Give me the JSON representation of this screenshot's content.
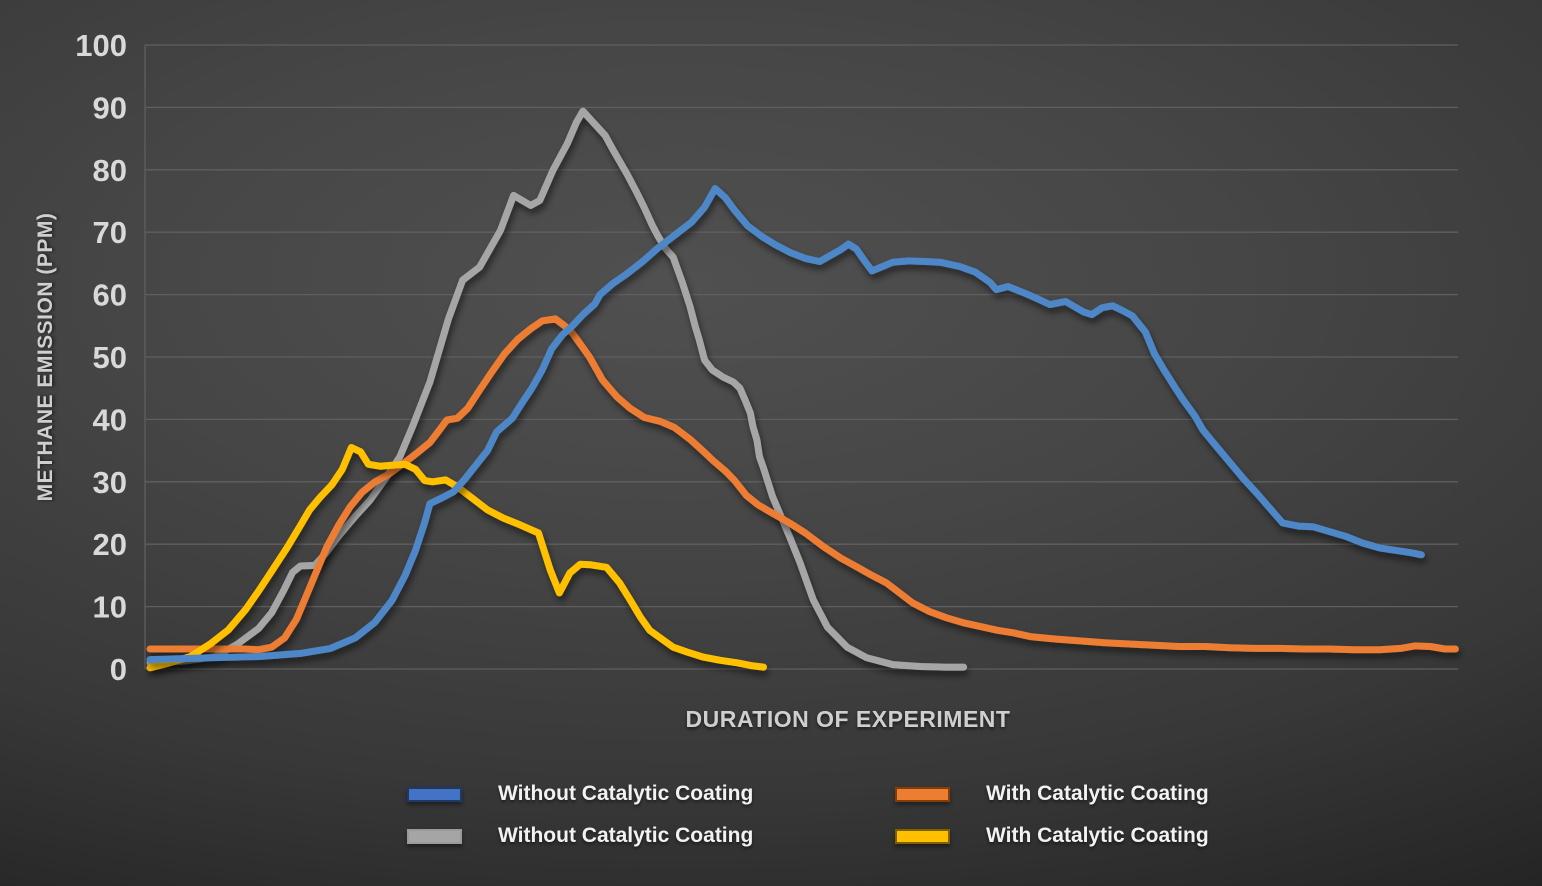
{
  "y_axis": {
    "title": "METHANE EMISSION (PPM)",
    "ticks": [
      0,
      10,
      20,
      30,
      40,
      50,
      60,
      70,
      80,
      90,
      100
    ],
    "tick_color": "#d9d9d9",
    "gridline_color": "#5f5f5f"
  },
  "x_axis": {
    "title": "DURATION OF EXPERIMENT"
  },
  "legend": [
    {
      "label": "Without Catalytic Coating",
      "swatch_fill": "#4472C4",
      "swatch_border": "#1F3864"
    },
    {
      "label": "Without Catalytic Coating",
      "swatch_fill": "#A5A5A5",
      "swatch_border": "#9A9A9A"
    },
    {
      "label": "With Catalytic Coating",
      "swatch_fill": "#ED7D31",
      "swatch_border": "#843C0C"
    },
    {
      "label": "With Catalytic Coating",
      "swatch_fill": "#FFC000",
      "swatch_border": "#7F6000"
    }
  ],
  "chart_data": {
    "type": "line",
    "title": "",
    "xlabel": "DURATION OF EXPERIMENT",
    "ylabel": "METHANE EMISSION (PPM)",
    "ylim": [
      0,
      100
    ],
    "xlim": [
      0,
      100
    ],
    "grid": true,
    "legend_position": "bottom",
    "x_units": "relative time (no tick labels shown)",
    "y_units": "ppm",
    "series": [
      {
        "name": "Without Catalytic Coating",
        "color": "#4D87C7",
        "points": [
          [
            0,
            1.5
          ],
          [
            4.6,
            1.8
          ],
          [
            8.4,
            2
          ],
          [
            11.5,
            2.5
          ],
          [
            13.8,
            3.3
          ],
          [
            15.7,
            5
          ],
          [
            17.2,
            7.5
          ],
          [
            18.5,
            11
          ],
          [
            19.5,
            15
          ],
          [
            20.3,
            19
          ],
          [
            21,
            23.5
          ],
          [
            21.4,
            26.5
          ],
          [
            22.2,
            27.3
          ],
          [
            23.2,
            28.4
          ],
          [
            24.1,
            30.5
          ],
          [
            25.8,
            35
          ],
          [
            26.5,
            38
          ],
          [
            27.7,
            40.2
          ],
          [
            28.4,
            42.5
          ],
          [
            29.2,
            45
          ],
          [
            30,
            48
          ],
          [
            30.7,
            51.3
          ],
          [
            31.5,
            53.5
          ],
          [
            32.3,
            55
          ],
          [
            33.1,
            56.8
          ],
          [
            34,
            58.5
          ],
          [
            34.4,
            60
          ],
          [
            35.4,
            61.8
          ],
          [
            36.3,
            63.1
          ],
          [
            37.6,
            65.2
          ],
          [
            38.8,
            67.4
          ],
          [
            40.1,
            69.5
          ],
          [
            41.4,
            71.6
          ],
          [
            42.4,
            74
          ],
          [
            43.2,
            77
          ],
          [
            44,
            75.5
          ],
          [
            44.7,
            73.5
          ],
          [
            45.7,
            71
          ],
          [
            46.8,
            69.3
          ],
          [
            47.8,
            68
          ],
          [
            48.9,
            66.8
          ],
          [
            50.1,
            65.8
          ],
          [
            51.2,
            65.3
          ],
          [
            52.8,
            67.2
          ],
          [
            53.4,
            68.1
          ],
          [
            54,
            67.3
          ],
          [
            54.7,
            65.2
          ],
          [
            55.2,
            63.8
          ],
          [
            56.8,
            65.2
          ],
          [
            58,
            65.4
          ],
          [
            59.3,
            65.3
          ],
          [
            60.4,
            65.2
          ],
          [
            61.9,
            64.5
          ],
          [
            63.1,
            63.6
          ],
          [
            64.2,
            62
          ],
          [
            64.7,
            60.8
          ],
          [
            65.6,
            61.3
          ],
          [
            66.8,
            60.3
          ],
          [
            67.9,
            59.3
          ],
          [
            68.8,
            58.4
          ],
          [
            70,
            58.9
          ],
          [
            71.4,
            57.2
          ],
          [
            72,
            56.8
          ],
          [
            72.8,
            57.9
          ],
          [
            73.6,
            58.2
          ],
          [
            74.3,
            57.5
          ],
          [
            75.1,
            56.6
          ],
          [
            76.1,
            54
          ],
          [
            76.8,
            50.5
          ],
          [
            77.5,
            48
          ],
          [
            78.4,
            45
          ],
          [
            79,
            43.1
          ],
          [
            79.9,
            40.5
          ],
          [
            80.5,
            38.3
          ],
          [
            81.6,
            35.5
          ],
          [
            82.6,
            33
          ],
          [
            83.6,
            30.5
          ],
          [
            84.6,
            28.2
          ],
          [
            85.6,
            25.8
          ],
          [
            86.6,
            23.4
          ],
          [
            87.8,
            22.9
          ],
          [
            88.9,
            22.8
          ],
          [
            90.2,
            22
          ],
          [
            91.5,
            21.2
          ],
          [
            92.7,
            20.2
          ],
          [
            94,
            19.4
          ],
          [
            95.6,
            18.9
          ],
          [
            96.5,
            18.6
          ],
          [
            97.2,
            18.3
          ]
        ]
      },
      {
        "name": "Without Catalytic Coating",
        "color": "#A6A6A6",
        "points": [
          [
            0,
            1
          ],
          [
            2.7,
            1.3
          ],
          [
            5,
            2
          ],
          [
            6.7,
            4
          ],
          [
            8.3,
            6.5
          ],
          [
            9.3,
            9
          ],
          [
            10.2,
            12.5
          ],
          [
            10.9,
            15.5
          ],
          [
            11.5,
            16.5
          ],
          [
            12.6,
            16.6
          ],
          [
            13.4,
            18.5
          ],
          [
            14.5,
            21.5
          ],
          [
            15.7,
            24.5
          ],
          [
            16.8,
            27
          ],
          [
            18,
            30.5
          ],
          [
            19.1,
            34
          ],
          [
            20.1,
            39
          ],
          [
            21.4,
            46
          ],
          [
            22.8,
            56
          ],
          [
            23.9,
            62.3
          ],
          [
            25.2,
            64.4
          ],
          [
            26.8,
            70.3
          ],
          [
            27.8,
            75.9
          ],
          [
            29.1,
            74.3
          ],
          [
            29.8,
            75.1
          ],
          [
            30.8,
            79.9
          ],
          [
            31.9,
            84.2
          ],
          [
            32.6,
            87.6
          ],
          [
            33.1,
            89.4
          ],
          [
            34.8,
            85.5
          ],
          [
            35.4,
            83.2
          ],
          [
            36.5,
            79.2
          ],
          [
            37.2,
            76.4
          ],
          [
            37.8,
            73.9
          ],
          [
            38.4,
            71.1
          ],
          [
            38.8,
            69.5
          ],
          [
            39.4,
            67.4
          ],
          [
            40,
            66
          ],
          [
            40.7,
            61.9
          ],
          [
            41.3,
            58
          ],
          [
            41.7,
            54.8
          ],
          [
            42,
            52.7
          ],
          [
            42.4,
            49.5
          ],
          [
            43,
            47.9
          ],
          [
            43.8,
            46.8
          ],
          [
            44.6,
            46
          ],
          [
            45.1,
            45
          ],
          [
            45.5,
            43.1
          ],
          [
            45.9,
            41
          ],
          [
            46.1,
            38.8
          ],
          [
            46.4,
            36.7
          ],
          [
            46.6,
            34
          ],
          [
            46.9,
            32.2
          ],
          [
            47.6,
            27.6
          ],
          [
            48.9,
            21.2
          ],
          [
            49.7,
            17
          ],
          [
            50.7,
            11.1
          ],
          [
            51.8,
            6.7
          ],
          [
            53.3,
            3.5
          ],
          [
            54.8,
            1.8
          ],
          [
            56.8,
            0.7
          ],
          [
            58.9,
            0.4
          ],
          [
            60.8,
            0.3
          ],
          [
            62.2,
            0.3
          ]
        ]
      },
      {
        "name": "With Catalytic Coating",
        "color": "#ED7D31",
        "points": [
          [
            0,
            3.2
          ],
          [
            3.8,
            3.2
          ],
          [
            7.3,
            3.2
          ],
          [
            8.3,
            3.1
          ],
          [
            9.3,
            3.5
          ],
          [
            10.3,
            5
          ],
          [
            11.2,
            8
          ],
          [
            11.9,
            11.5
          ],
          [
            12.7,
            15.5
          ],
          [
            13.5,
            19.5
          ],
          [
            14.4,
            23
          ],
          [
            15.3,
            26
          ],
          [
            16.2,
            28.3
          ],
          [
            17.2,
            30
          ],
          [
            18.3,
            31.3
          ],
          [
            19.3,
            32.8
          ],
          [
            20.4,
            34.6
          ],
          [
            21.4,
            36.3
          ],
          [
            22.2,
            38.5
          ],
          [
            22.7,
            39.9
          ],
          [
            23.5,
            40.2
          ],
          [
            24.3,
            41.8
          ],
          [
            25.2,
            44.7
          ],
          [
            26.1,
            47.5
          ],
          [
            27.1,
            50.5
          ],
          [
            28.1,
            52.8
          ],
          [
            29.1,
            54.5
          ],
          [
            30,
            55.8
          ],
          [
            31,
            56.1
          ],
          [
            31.7,
            55
          ],
          [
            32.3,
            53.8
          ],
          [
            33,
            51.8
          ],
          [
            33.6,
            50
          ],
          [
            34.6,
            46.3
          ],
          [
            35.7,
            43.6
          ],
          [
            36.7,
            41.8
          ],
          [
            37.8,
            40.3
          ],
          [
            39,
            39.7
          ],
          [
            40.1,
            38.7
          ],
          [
            41.3,
            36.8
          ],
          [
            42.4,
            34.7
          ],
          [
            43,
            33.5
          ],
          [
            44,
            31.7
          ],
          [
            44.7,
            30.2
          ],
          [
            45.6,
            27.8
          ],
          [
            46.5,
            26.3
          ],
          [
            47.4,
            25.2
          ],
          [
            48.4,
            24
          ],
          [
            48.9,
            23.4
          ],
          [
            50.1,
            21.8
          ],
          [
            51.5,
            19.6
          ],
          [
            52.8,
            17.8
          ],
          [
            54.1,
            16.3
          ],
          [
            55.2,
            15
          ],
          [
            56.3,
            13.8
          ],
          [
            57.3,
            12.2
          ],
          [
            58.3,
            10.6
          ],
          [
            59.6,
            9.2
          ],
          [
            60.9,
            8.2
          ],
          [
            62.2,
            7.4
          ],
          [
            63.5,
            6.8
          ],
          [
            64.8,
            6.2
          ],
          [
            66,
            5.8
          ],
          [
            67.3,
            5.2
          ],
          [
            69.2,
            4.8
          ],
          [
            71.1,
            4.5
          ],
          [
            73,
            4.2
          ],
          [
            74.9,
            4
          ],
          [
            76.8,
            3.8
          ],
          [
            78.7,
            3.6
          ],
          [
            80.7,
            3.6
          ],
          [
            82.6,
            3.4
          ],
          [
            84.5,
            3.3
          ],
          [
            86.4,
            3.3
          ],
          [
            88.3,
            3.2
          ],
          [
            90.2,
            3.2
          ],
          [
            92.1,
            3.1
          ],
          [
            94,
            3.1
          ],
          [
            95.6,
            3.3
          ],
          [
            96.7,
            3.7
          ],
          [
            97.9,
            3.6
          ],
          [
            99,
            3.2
          ],
          [
            99.8,
            3.2
          ]
        ]
      },
      {
        "name": "With Catalytic Coating",
        "color": "#FFC000",
        "points": [
          [
            0,
            0.2
          ],
          [
            1.5,
            1
          ],
          [
            3.1,
            2
          ],
          [
            4.6,
            4
          ],
          [
            6,
            6.3
          ],
          [
            7.3,
            9.5
          ],
          [
            8.4,
            12.8
          ],
          [
            9.4,
            16
          ],
          [
            10.5,
            19.5
          ],
          [
            11.5,
            23
          ],
          [
            12.2,
            25.5
          ],
          [
            13,
            27.5
          ],
          [
            13.9,
            29.5
          ],
          [
            14.7,
            32
          ],
          [
            15.4,
            35.5
          ],
          [
            16.1,
            34.8
          ],
          [
            16.7,
            32.8
          ],
          [
            17.6,
            32.5
          ],
          [
            18.7,
            32.7
          ],
          [
            19.5,
            32.8
          ],
          [
            20.3,
            32
          ],
          [
            21,
            30.2
          ],
          [
            21.6,
            30
          ],
          [
            22.6,
            30.3
          ],
          [
            23.5,
            29.2
          ],
          [
            24.5,
            27.6
          ],
          [
            25.8,
            25.5
          ],
          [
            27,
            24.2
          ],
          [
            28.3,
            23.1
          ],
          [
            29.7,
            21.8
          ],
          [
            30.6,
            15.9
          ],
          [
            31.3,
            12.2
          ],
          [
            32.1,
            15.4
          ],
          [
            32.9,
            16.8
          ],
          [
            33.7,
            16.7
          ],
          [
            34.9,
            16.3
          ],
          [
            35.9,
            13.8
          ],
          [
            36.7,
            11.1
          ],
          [
            37.5,
            8.3
          ],
          [
            38.2,
            6.2
          ],
          [
            39,
            5
          ],
          [
            40,
            3.5
          ],
          [
            41.1,
            2.7
          ],
          [
            42.3,
            1.9
          ],
          [
            43.6,
            1.4
          ],
          [
            44.9,
            1
          ],
          [
            46.1,
            0.5
          ],
          [
            46.9,
            0.3
          ]
        ]
      }
    ]
  },
  "layout_colors": {
    "background_center": "#4e4e4e",
    "background_edge": "#1a1a1a"
  }
}
